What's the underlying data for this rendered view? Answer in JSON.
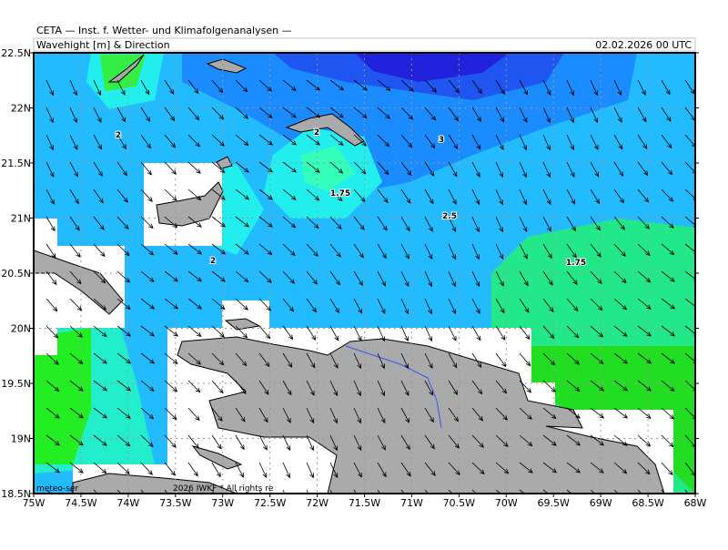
{
  "header": {
    "title": "CETA — Inst. f. Wetter- und Klimafolgenanalysen —",
    "subtitle": "Wavehight [m] & Direction",
    "date": "02.02.2026 00 UTC"
  },
  "map": {
    "lat_labels": [
      "22.5N",
      "22N",
      "21.5N",
      "21N",
      "20.5N",
      "20N",
      "19.5N",
      "19N",
      "18.5N"
    ],
    "lon_labels": [
      "75W",
      "74.5W",
      "74W",
      "73.5W",
      "73W",
      "72.5W",
      "72W",
      "71.5W",
      "71W",
      "70.5W",
      "70W",
      "69.5W",
      "69W",
      "68.5W",
      "68W"
    ],
    "contour_labels": [
      "2",
      "2",
      "1.75",
      "2.5",
      "3",
      "2",
      "1.75"
    ],
    "credit_left": "meteo-ser",
    "credit_right": "2026 IWKF * All rights re"
  }
}
